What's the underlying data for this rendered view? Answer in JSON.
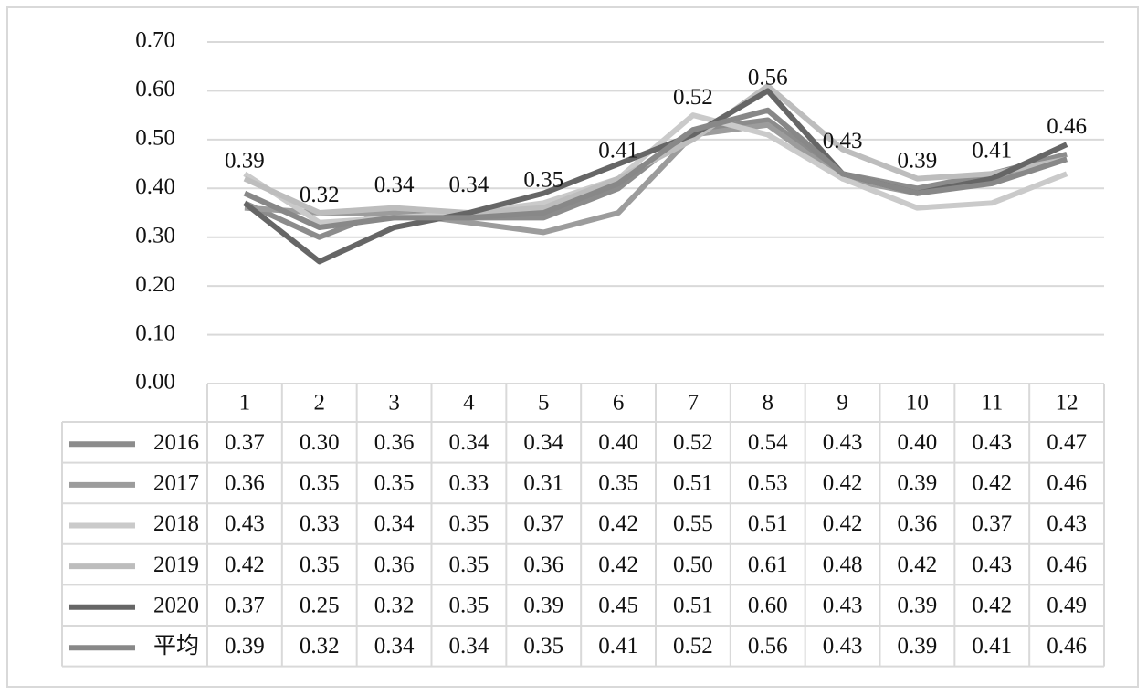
{
  "chart_data": {
    "type": "line",
    "categories": [
      "1",
      "2",
      "3",
      "4",
      "5",
      "6",
      "7",
      "8",
      "9",
      "10",
      "11",
      "12"
    ],
    "ylim": [
      0,
      0.7
    ],
    "yticks": [
      {
        "value": 0,
        "label": "0.00"
      },
      {
        "value": 0.1,
        "label": "0.10"
      },
      {
        "value": 0.2,
        "label": "0.20"
      },
      {
        "value": 0.3,
        "label": "0.30"
      },
      {
        "value": 0.4,
        "label": "0.40"
      },
      {
        "value": 0.5,
        "label": "0.50"
      },
      {
        "value": 0.6,
        "label": "0.60"
      },
      {
        "value": 0.7,
        "label": "0.70"
      }
    ],
    "grid": true,
    "series": [
      {
        "name": "2016",
        "color": "#8c8c8c",
        "values": [
          0.37,
          0.3,
          0.36,
          0.34,
          0.34,
          0.4,
          0.52,
          0.54,
          0.43,
          0.4,
          0.43,
          0.47
        ],
        "value_labels": [
          "0.37",
          "0.30",
          "0.36",
          "0.34",
          "0.34",
          "0.40",
          "0.52",
          "0.54",
          "0.43",
          "0.40",
          "0.43",
          "0.47"
        ]
      },
      {
        "name": "2017",
        "color": "#9c9c9c",
        "values": [
          0.36,
          0.35,
          0.35,
          0.33,
          0.31,
          0.35,
          0.51,
          0.53,
          0.42,
          0.39,
          0.42,
          0.46
        ],
        "value_labels": [
          "0.36",
          "0.35",
          "0.35",
          "0.33",
          "0.31",
          "0.35",
          "0.51",
          "0.53",
          "0.42",
          "0.39",
          "0.42",
          "0.46"
        ]
      },
      {
        "name": "2018",
        "color": "#cacaca",
        "values": [
          0.43,
          0.33,
          0.34,
          0.35,
          0.37,
          0.42,
          0.55,
          0.51,
          0.42,
          0.36,
          0.37,
          0.43
        ],
        "value_labels": [
          "0.43",
          "0.33",
          "0.34",
          "0.35",
          "0.37",
          "0.42",
          "0.55",
          "0.51",
          "0.42",
          "0.36",
          "0.37",
          "0.43"
        ]
      },
      {
        "name": "2019",
        "color": "#bdbdbd",
        "values": [
          0.42,
          0.35,
          0.36,
          0.35,
          0.36,
          0.42,
          0.5,
          0.61,
          0.48,
          0.42,
          0.43,
          0.46
        ],
        "value_labels": [
          "0.42",
          "0.35",
          "0.36",
          "0.35",
          "0.36",
          "0.42",
          "0.50",
          "0.61",
          "0.48",
          "0.42",
          "0.43",
          "0.46"
        ]
      },
      {
        "name": "2020",
        "color": "#666666",
        "values": [
          0.37,
          0.25,
          0.32,
          0.35,
          0.39,
          0.45,
          0.51,
          0.6,
          0.43,
          0.39,
          0.42,
          0.49
        ],
        "value_labels": [
          "0.37",
          "0.25",
          "0.32",
          "0.35",
          "0.39",
          "0.45",
          "0.51",
          "0.60",
          "0.43",
          "0.39",
          "0.42",
          "0.49"
        ]
      },
      {
        "name": "平均",
        "color": "#888888",
        "values": [
          0.39,
          0.32,
          0.34,
          0.34,
          0.35,
          0.41,
          0.52,
          0.56,
          0.43,
          0.39,
          0.41,
          0.46
        ],
        "value_labels": [
          "0.39",
          "0.32",
          "0.34",
          "0.34",
          "0.35",
          "0.41",
          "0.52",
          "0.56",
          "0.43",
          "0.39",
          "0.41",
          "0.46"
        ],
        "data_labels": true
      }
    ]
  }
}
